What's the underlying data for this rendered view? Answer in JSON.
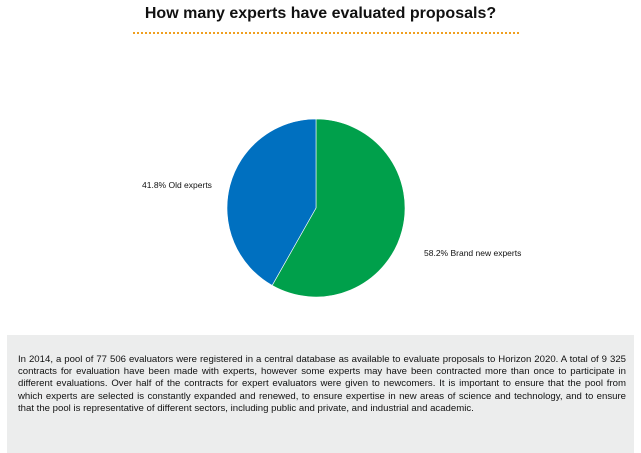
{
  "page": {
    "title": "How many experts have evaluated proposals?",
    "accent_color": "#f0a020"
  },
  "chart_data": {
    "type": "pie",
    "title": "How many experts have evaluated proposals?",
    "slices": [
      {
        "label": "Brand new experts",
        "value": 58.2,
        "color": "#00a04b",
        "display": "58.2% Brand new experts"
      },
      {
        "label": "Old experts",
        "value": 41.8,
        "color": "#0070c0",
        "display": "41.8% Old experts"
      }
    ],
    "legend": "none"
  },
  "info_box": {
    "text": "In 2014, a pool of 77 506 evaluators were registered in a central database as available to evaluate proposals to Horizon 2020. A total of 9 325 contracts for evaluation have been made with experts, however some experts may have been contracted more than once to participate in different evaluations. Over half of the contracts for expert evaluators were given to newcomers. It is important to ensure that the pool from which experts are selected is constantly expanded and renewed, to ensure expertise in new areas of science and technology, and to ensure that the pool is representative of different sectors, including public and private, and industrial and academic."
  }
}
